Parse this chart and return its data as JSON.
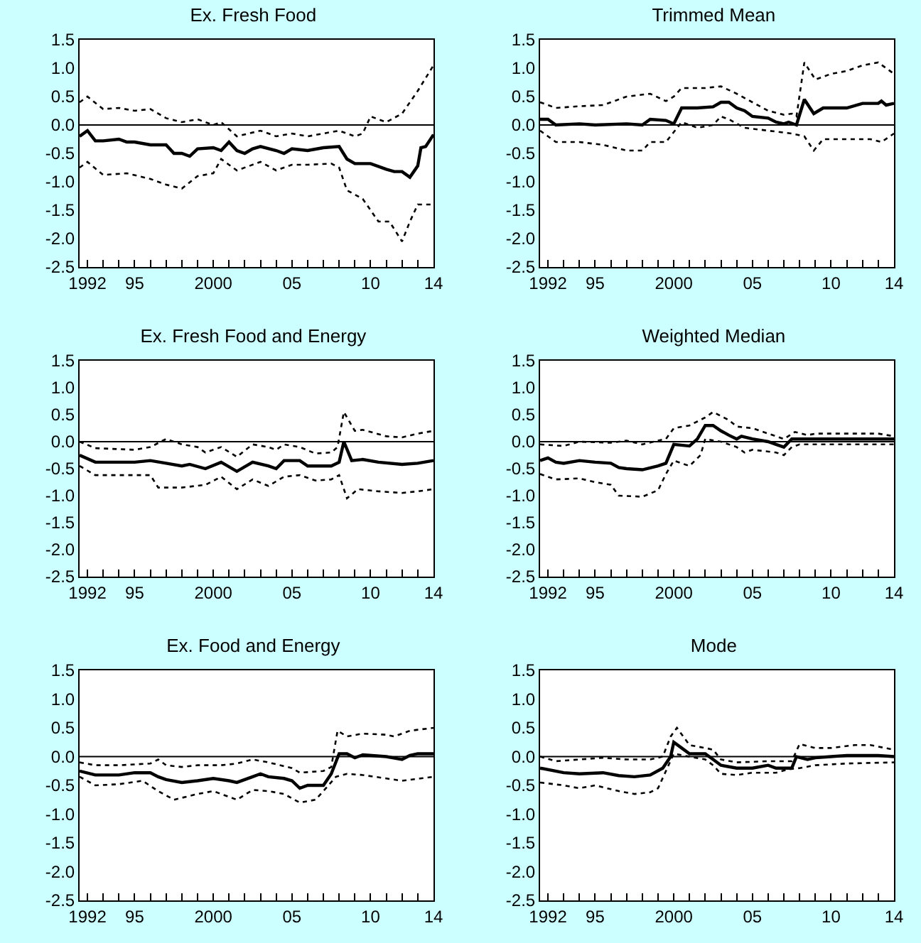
{
  "chart_data": [
    {
      "type": "line",
      "title": "Ex. Fresh Food",
      "xlim": [
        1991.5,
        2014
      ],
      "xticks": [
        {
          "value": 1992,
          "label": "1992"
        },
        {
          "value": 1993,
          "label": null
        },
        {
          "value": 1994,
          "label": null
        },
        {
          "value": 1995,
          "label": "95"
        },
        {
          "value": 1996,
          "label": null
        },
        {
          "value": 1997,
          "label": null
        },
        {
          "value": 1998,
          "label": null
        },
        {
          "value": 1999,
          "label": null
        },
        {
          "value": 2000,
          "label": "2000"
        },
        {
          "value": 2001,
          "label": null
        },
        {
          "value": 2002,
          "label": null
        },
        {
          "value": 2003,
          "label": null
        },
        {
          "value": 2004,
          "label": null
        },
        {
          "value": 2005,
          "label": "05"
        },
        {
          "value": 2006,
          "label": null
        },
        {
          "value": 2007,
          "label": null
        },
        {
          "value": 2008,
          "label": null
        },
        {
          "value": 2009,
          "label": null
        },
        {
          "value": 2010,
          "label": "10"
        },
        {
          "value": 2011,
          "label": null
        },
        {
          "value": 2012,
          "label": null
        },
        {
          "value": 2013,
          "label": null
        },
        {
          "value": 2014,
          "label": "14"
        }
      ],
      "ylim": [
        -2.5,
        1.5
      ],
      "yticks": [
        {
          "value": -2.5,
          "label": "-2.5"
        },
        {
          "value": -2,
          "label": "-2.0"
        },
        {
          "value": -1.5,
          "label": "-1.5"
        },
        {
          "value": -1,
          "label": "-1.0"
        },
        {
          "value": -0.5,
          "label": "-0.5"
        },
        {
          "value": 0,
          "label": "0.0"
        },
        {
          "value": 0.5,
          "label": "0.5"
        },
        {
          "value": 1,
          "label": "1.0"
        },
        {
          "value": 1.5,
          "label": "1.5"
        }
      ],
      "grid": false,
      "ref_lines": [
        {
          "axis": "y",
          "value": 0,
          "color": "#000000"
        }
      ],
      "series": [
        {
          "color": "#000000",
          "line_style": "solid",
          "x": [
            1991.5,
            1992,
            1992.5,
            1993,
            1994,
            1994.5,
            1995,
            1996,
            1997,
            1997.5,
            1998,
            1998.5,
            1999,
            2000,
            2000.5,
            2001,
            2001.5,
            2002,
            2002.5,
            2003,
            2004,
            2004.5,
            2005,
            2006,
            2007,
            2008,
            2008.5,
            2009,
            2010,
            2011,
            2011.5,
            2012,
            2012.5,
            2013,
            2013.2,
            2013.5,
            2014
          ],
          "values": [
            -0.2,
            -0.1,
            -0.28,
            -0.28,
            -0.25,
            -0.3,
            -0.3,
            -0.35,
            -0.35,
            -0.5,
            -0.5,
            -0.55,
            -0.42,
            -0.4,
            -0.45,
            -0.3,
            -0.45,
            -0.5,
            -0.42,
            -0.38,
            -0.45,
            -0.5,
            -0.42,
            -0.45,
            -0.4,
            -0.38,
            -0.6,
            -0.68,
            -0.68,
            -0.78,
            -0.82,
            -0.82,
            -0.92,
            -0.72,
            -0.4,
            -0.38,
            -0.17
          ]
        },
        {
          "color": "#000000",
          "line_style": "dotted",
          "x": [
            1991.5,
            1992,
            1993,
            1994,
            1995,
            1996,
            1997,
            1998,
            1999,
            2000,
            2000.5,
            2001.5,
            2003,
            2004,
            2005,
            2006,
            2007,
            2008,
            2009,
            2009.5,
            2010,
            2011,
            2012,
            2013,
            2014
          ],
          "values": [
            0.4,
            0.5,
            0.28,
            0.3,
            0.25,
            0.28,
            0.12,
            0.05,
            0.1,
            0,
            0.05,
            -0.2,
            -0.1,
            -0.2,
            -0.15,
            -0.2,
            -0.15,
            -0.1,
            -0.2,
            -0.15,
            0.15,
            0.05,
            0.2,
            0.6,
            1.05
          ]
        },
        {
          "color": "#000000",
          "line_style": "dotted",
          "x": [
            1991.5,
            1992,
            1993,
            1994.5,
            1996,
            1997,
            1998,
            1999,
            2000,
            2000.5,
            2001.5,
            2003,
            2004,
            2005,
            2006,
            2007.5,
            2008,
            2008.5,
            2009.5,
            2010.5,
            2011.2,
            2012,
            2012.5,
            2013,
            2014
          ],
          "values": [
            -0.75,
            -0.65,
            -0.88,
            -0.85,
            -0.95,
            -1.05,
            -1.12,
            -0.9,
            -0.85,
            -0.6,
            -0.8,
            -0.65,
            -0.8,
            -0.7,
            -0.7,
            -0.68,
            -0.75,
            -1.15,
            -1.3,
            -1.7,
            -1.7,
            -2.05,
            -1.7,
            -1.4,
            -1.4
          ]
        }
      ]
    },
    {
      "type": "line",
      "title": "Trimmed Mean",
      "xlim": [
        1991.5,
        2014
      ],
      "xticks": [
        {
          "value": 1992,
          "label": "1992"
        },
        {
          "value": 1993,
          "label": null
        },
        {
          "value": 1994,
          "label": null
        },
        {
          "value": 1995,
          "label": "95"
        },
        {
          "value": 1996,
          "label": null
        },
        {
          "value": 1997,
          "label": null
        },
        {
          "value": 1998,
          "label": null
        },
        {
          "value": 1999,
          "label": null
        },
        {
          "value": 2000,
          "label": "2000"
        },
        {
          "value": 2001,
          "label": null
        },
        {
          "value": 2002,
          "label": null
        },
        {
          "value": 2003,
          "label": null
        },
        {
          "value": 2004,
          "label": null
        },
        {
          "value": 2005,
          "label": "05"
        },
        {
          "value": 2006,
          "label": null
        },
        {
          "value": 2007,
          "label": null
        },
        {
          "value": 2008,
          "label": null
        },
        {
          "value": 2009,
          "label": null
        },
        {
          "value": 2010,
          "label": "10"
        },
        {
          "value": 2011,
          "label": null
        },
        {
          "value": 2012,
          "label": null
        },
        {
          "value": 2013,
          "label": null
        },
        {
          "value": 2014,
          "label": "14"
        }
      ],
      "ylim": [
        -2.5,
        1.5
      ],
      "yticks": [
        {
          "value": -2.5,
          "label": "-2.5"
        },
        {
          "value": -2,
          "label": "-2.0"
        },
        {
          "value": -1.5,
          "label": "-1.5"
        },
        {
          "value": -1,
          "label": "-1.0"
        },
        {
          "value": -0.5,
          "label": "-0.5"
        },
        {
          "value": 0,
          "label": "0.0"
        },
        {
          "value": 0.5,
          "label": "0.5"
        },
        {
          "value": 1,
          "label": "1.0"
        },
        {
          "value": 1.5,
          "label": "1.5"
        }
      ],
      "grid": false,
      "ref_lines": [
        {
          "axis": "y",
          "value": 0,
          "color": "#000000"
        }
      ],
      "series": [
        {
          "color": "#000000",
          "line_style": "solid",
          "x": [
            1991.5,
            1992,
            1992.5,
            1994,
            1995,
            1997,
            1998,
            1998.5,
            1999.5,
            2000,
            2000.5,
            2001.5,
            2002.5,
            2003,
            2003.5,
            2004,
            2004.5,
            2005,
            2006,
            2006.5,
            2007,
            2007.3,
            2007.8,
            2008.3,
            2008.9,
            2009.5,
            2011,
            2012,
            2013,
            2013.2,
            2013.5,
            2014
          ],
          "values": [
            0.1,
            0.1,
            0,
            0.02,
            0,
            0.02,
            0,
            0.1,
            0.08,
            0.02,
            0.3,
            0.3,
            0.32,
            0.4,
            0.4,
            0.3,
            0.25,
            0.15,
            0.12,
            0.05,
            0.02,
            0.05,
            0,
            0.45,
            0.2,
            0.3,
            0.3,
            0.38,
            0.38,
            0.42,
            0.35,
            0.38
          ]
        },
        {
          "color": "#000000",
          "line_style": "dotted",
          "x": [
            1991.5,
            1992.5,
            1994,
            1995.5,
            1997,
            1998.5,
            1999.5,
            2000,
            2000.5,
            2002,
            2003,
            2004,
            2005,
            2006,
            2007,
            2007.5,
            2007.8,
            2008.3,
            2009,
            2010,
            2011,
            2012,
            2013,
            2014
          ],
          "values": [
            0.4,
            0.3,
            0.33,
            0.35,
            0.5,
            0.55,
            0.42,
            0.5,
            0.65,
            0.65,
            0.68,
            0.55,
            0.4,
            0.25,
            0.18,
            0.2,
            0.15,
            1.1,
            0.8,
            0.9,
            0.95,
            1.05,
            1.1,
            0.9
          ]
        },
        {
          "color": "#000000",
          "line_style": "dotted",
          "x": [
            1991.5,
            1992.5,
            1994,
            1995.5,
            1997,
            1998,
            1998.5,
            1999.5,
            2000.5,
            2001.5,
            2002.5,
            2003,
            2003.5,
            2004.5,
            2006,
            2007.5,
            2008.3,
            2008.9,
            2009.5,
            2011,
            2012.5,
            2013.2,
            2014
          ],
          "values": [
            -0.1,
            -0.3,
            -0.3,
            -0.35,
            -0.45,
            -0.45,
            -0.3,
            -0.3,
            0.05,
            -0.05,
            0,
            0.15,
            0.1,
            -0.05,
            -0.1,
            -0.15,
            -0.2,
            -0.45,
            -0.25,
            -0.25,
            -0.25,
            -0.3,
            -0.15
          ]
        }
      ]
    },
    {
      "type": "line",
      "title": "Ex. Fresh Food and Energy",
      "xlim": [
        1991.5,
        2014
      ],
      "xticks": [
        {
          "value": 1992,
          "label": "1992"
        },
        {
          "value": 1993,
          "label": null
        },
        {
          "value": 1994,
          "label": null
        },
        {
          "value": 1995,
          "label": "95"
        },
        {
          "value": 1996,
          "label": null
        },
        {
          "value": 1997,
          "label": null
        },
        {
          "value": 1998,
          "label": null
        },
        {
          "value": 1999,
          "label": null
        },
        {
          "value": 2000,
          "label": "2000"
        },
        {
          "value": 2001,
          "label": null
        },
        {
          "value": 2002,
          "label": null
        },
        {
          "value": 2003,
          "label": null
        },
        {
          "value": 2004,
          "label": null
        },
        {
          "value": 2005,
          "label": "05"
        },
        {
          "value": 2006,
          "label": null
        },
        {
          "value": 2007,
          "label": null
        },
        {
          "value": 2008,
          "label": null
        },
        {
          "value": 2009,
          "label": null
        },
        {
          "value": 2010,
          "label": "10"
        },
        {
          "value": 2011,
          "label": null
        },
        {
          "value": 2012,
          "label": null
        },
        {
          "value": 2013,
          "label": null
        },
        {
          "value": 2014,
          "label": "14"
        }
      ],
      "ylim": [
        -2.5,
        1.5
      ],
      "yticks": [
        {
          "value": -2.5,
          "label": "-2.5"
        },
        {
          "value": -2,
          "label": "-2.0"
        },
        {
          "value": -1.5,
          "label": "-1.5"
        },
        {
          "value": -1,
          "label": "-1.0"
        },
        {
          "value": -0.5,
          "label": "-0.5"
        },
        {
          "value": 0,
          "label": "0.0"
        },
        {
          "value": 0.5,
          "label": "0.5"
        },
        {
          "value": 1,
          "label": "1.0"
        },
        {
          "value": 1.5,
          "label": "1.5"
        }
      ],
      "grid": false,
      "ref_lines": [
        {
          "axis": "y",
          "value": 0,
          "color": "#000000"
        }
      ],
      "series": [
        {
          "color": "#000000",
          "line_style": "solid",
          "x": [
            1991.5,
            1992.5,
            1994,
            1995,
            1996,
            1997,
            1998,
            1998.5,
            1999.5,
            2000.5,
            2001.5,
            2002.5,
            2003.5,
            2004,
            2004.5,
            2005.5,
            2006,
            2007.5,
            2008,
            2008.3,
            2008.8,
            2009.5,
            2010.5,
            2012,
            2013,
            2014
          ],
          "values": [
            -0.25,
            -0.38,
            -0.38,
            -0.38,
            -0.35,
            -0.4,
            -0.45,
            -0.42,
            -0.5,
            -0.38,
            -0.55,
            -0.38,
            -0.45,
            -0.5,
            -0.35,
            -0.35,
            -0.45,
            -0.45,
            -0.38,
            0,
            -0.35,
            -0.33,
            -0.38,
            -0.42,
            -0.4,
            -0.35
          ]
        },
        {
          "color": "#000000",
          "line_style": "dotted",
          "x": [
            1991.5,
            1992.5,
            1995,
            1996,
            1997,
            1998,
            1999,
            1999.5,
            2000.5,
            2001.5,
            2002.5,
            2003.5,
            2004,
            2004.5,
            2005.5,
            2006.5,
            2007.5,
            2007.9,
            2008.3,
            2009,
            2009.5,
            2011,
            2012,
            2013,
            2014
          ],
          "values": [
            0,
            -0.12,
            -0.15,
            -0.1,
            0.05,
            -0.05,
            -0.1,
            -0.2,
            -0.1,
            -0.28,
            -0.05,
            -0.1,
            -0.15,
            -0.05,
            -0.1,
            -0.22,
            -0.2,
            -0.1,
            0.55,
            0.2,
            0.22,
            0.1,
            0.08,
            0.15,
            0.2
          ]
        },
        {
          "color": "#000000",
          "line_style": "dotted",
          "x": [
            1991.5,
            1992.5,
            1994,
            1996,
            1996.5,
            1998,
            1999.5,
            2000.5,
            2001.5,
            2002.5,
            2003.5,
            2004.5,
            2005.5,
            2006.5,
            2007.5,
            2008,
            2008.5,
            2009.2,
            2010.5,
            2012,
            2013,
            2014
          ],
          "values": [
            -0.45,
            -0.62,
            -0.62,
            -0.62,
            -0.85,
            -0.85,
            -0.8,
            -0.65,
            -0.88,
            -0.7,
            -0.82,
            -0.65,
            -0.62,
            -0.72,
            -0.7,
            -0.62,
            -1.05,
            -0.88,
            -0.92,
            -0.95,
            -0.92,
            -0.88
          ]
        }
      ]
    },
    {
      "type": "line",
      "title": "Weighted Median",
      "xlim": [
        1991.5,
        2014
      ],
      "xticks": [
        {
          "value": 1992,
          "label": "1992"
        },
        {
          "value": 1993,
          "label": null
        },
        {
          "value": 1994,
          "label": null
        },
        {
          "value": 1995,
          "label": "95"
        },
        {
          "value": 1996,
          "label": null
        },
        {
          "value": 1997,
          "label": null
        },
        {
          "value": 1998,
          "label": null
        },
        {
          "value": 1999,
          "label": null
        },
        {
          "value": 2000,
          "label": "2000"
        },
        {
          "value": 2001,
          "label": null
        },
        {
          "value": 2002,
          "label": null
        },
        {
          "value": 2003,
          "label": null
        },
        {
          "value": 2004,
          "label": null
        },
        {
          "value": 2005,
          "label": "05"
        },
        {
          "value": 2006,
          "label": null
        },
        {
          "value": 2007,
          "label": null
        },
        {
          "value": 2008,
          "label": null
        },
        {
          "value": 2009,
          "label": null
        },
        {
          "value": 2010,
          "label": "10"
        },
        {
          "value": 2011,
          "label": null
        },
        {
          "value": 2012,
          "label": null
        },
        {
          "value": 2013,
          "label": null
        },
        {
          "value": 2014,
          "label": "14"
        }
      ],
      "ylim": [
        -2.5,
        1.5
      ],
      "yticks": [
        {
          "value": -2.5,
          "label": "-2.5"
        },
        {
          "value": -2,
          "label": "-2.0"
        },
        {
          "value": -1.5,
          "label": "-1.5"
        },
        {
          "value": -1,
          "label": "-1.0"
        },
        {
          "value": -0.5,
          "label": "-0.5"
        },
        {
          "value": 0,
          "label": "0.0"
        },
        {
          "value": 0.5,
          "label": "0.5"
        },
        {
          "value": 1,
          "label": "1.0"
        },
        {
          "value": 1.5,
          "label": "1.5"
        }
      ],
      "grid": false,
      "ref_lines": [
        {
          "axis": "y",
          "value": 0,
          "color": "#000000"
        }
      ],
      "series": [
        {
          "color": "#000000",
          "line_style": "solid",
          "x": [
            1991.5,
            1992,
            1992.5,
            1993,
            1994,
            1995,
            1996,
            1996.5,
            1997,
            1998,
            1999,
            1999.5,
            2000,
            2001,
            2001.5,
            2002,
            2002.5,
            2003,
            2003.5,
            2004,
            2004.3,
            2005,
            2006,
            2006.5,
            2007,
            2007.5,
            2008,
            2010,
            2013,
            2014
          ],
          "values": [
            -0.35,
            -0.3,
            -0.38,
            -0.4,
            -0.35,
            -0.38,
            -0.4,
            -0.48,
            -0.5,
            -0.52,
            -0.45,
            -0.4,
            -0.05,
            -0.08,
            0.05,
            0.3,
            0.3,
            0.2,
            0.12,
            0.05,
            0.1,
            0.05,
            0,
            -0.05,
            -0.1,
            0.05,
            0.05,
            0.05,
            0.05,
            0.05
          ]
        },
        {
          "color": "#000000",
          "line_style": "dotted",
          "x": [
            1991.5,
            1993,
            1994,
            1996,
            1997,
            1998,
            1999,
            1999.5,
            2000,
            2001,
            2002,
            2002.5,
            2003.5,
            2004,
            2005,
            2006.5,
            2007,
            2007.7,
            2008.5,
            2009,
            2013,
            2014
          ],
          "values": [
            -0.05,
            -0.08,
            0,
            -0.02,
            0.02,
            -0.05,
            0.02,
            0.05,
            0.25,
            0.3,
            0.45,
            0.55,
            0.4,
            0.28,
            0.25,
            0.1,
            0.05,
            0.18,
            0.12,
            0.15,
            0.15,
            0.1
          ]
        },
        {
          "color": "#000000",
          "line_style": "dotted",
          "x": [
            1991.5,
            1992.5,
            1994,
            1995,
            1996,
            1996.5,
            1998,
            1999,
            1999.5,
            2000,
            2001,
            2001.7,
            2002,
            2003,
            2004,
            2004.5,
            2005,
            2006.5,
            2007,
            2007.5,
            2008,
            2013,
            2014
          ],
          "values": [
            -0.6,
            -0.7,
            -0.68,
            -0.75,
            -0.8,
            -1,
            -1.02,
            -0.9,
            -0.6,
            -0.35,
            -0.45,
            -0.25,
            0.05,
            0,
            -0.1,
            -0.2,
            -0.15,
            -0.2,
            -0.25,
            -0.1,
            -0.05,
            -0.05,
            -0.05
          ]
        }
      ]
    },
    {
      "type": "line",
      "title": "Ex. Food and Energy",
      "xlim": [
        1991.5,
        2014
      ],
      "xticks": [
        {
          "value": 1992,
          "label": "1992"
        },
        {
          "value": 1993,
          "label": null
        },
        {
          "value": 1994,
          "label": null
        },
        {
          "value": 1995,
          "label": "95"
        },
        {
          "value": 1996,
          "label": null
        },
        {
          "value": 1997,
          "label": null
        },
        {
          "value": 1998,
          "label": null
        },
        {
          "value": 1999,
          "label": null
        },
        {
          "value": 2000,
          "label": "2000"
        },
        {
          "value": 2001,
          "label": null
        },
        {
          "value": 2002,
          "label": null
        },
        {
          "value": 2003,
          "label": null
        },
        {
          "value": 2004,
          "label": null
        },
        {
          "value": 2005,
          "label": "05"
        },
        {
          "value": 2006,
          "label": null
        },
        {
          "value": 2007,
          "label": null
        },
        {
          "value": 2008,
          "label": null
        },
        {
          "value": 2009,
          "label": null
        },
        {
          "value": 2010,
          "label": "10"
        },
        {
          "value": 2011,
          "label": null
        },
        {
          "value": 2012,
          "label": null
        },
        {
          "value": 2013,
          "label": null
        },
        {
          "value": 2014,
          "label": "14"
        }
      ],
      "ylim": [
        -2.5,
        1.5
      ],
      "yticks": [
        {
          "value": -2.5,
          "label": "-2.5"
        },
        {
          "value": -2,
          "label": "-2.0"
        },
        {
          "value": -1.5,
          "label": "-1.5"
        },
        {
          "value": -1,
          "label": "-1.0"
        },
        {
          "value": -0.5,
          "label": "-0.5"
        },
        {
          "value": 0,
          "label": "0.0"
        },
        {
          "value": 0.5,
          "label": "0.5"
        },
        {
          "value": 1,
          "label": "1.0"
        },
        {
          "value": 1.5,
          "label": "1.5"
        }
      ],
      "grid": false,
      "ref_lines": [
        {
          "axis": "y",
          "value": 0,
          "color": "#000000"
        }
      ],
      "series": [
        {
          "color": "#000000",
          "line_style": "solid",
          "x": [
            1991.5,
            1992.5,
            1994,
            1995,
            1996,
            1996.5,
            1997,
            1998,
            1999,
            2000,
            2001,
            2001.5,
            2002.5,
            2003,
            2003.5,
            2004.5,
            2005,
            2005.5,
            2006,
            2007,
            2007.5,
            2008,
            2008.5,
            2009,
            2009.5,
            2011,
            2012,
            2012.5,
            2013,
            2014
          ],
          "values": [
            -0.25,
            -0.32,
            -0.32,
            -0.28,
            -0.28,
            -0.35,
            -0.4,
            -0.45,
            -0.42,
            -0.38,
            -0.42,
            -0.45,
            -0.35,
            -0.3,
            -0.35,
            -0.38,
            -0.42,
            -0.55,
            -0.5,
            -0.5,
            -0.3,
            0.05,
            0.05,
            -0.02,
            0.03,
            0,
            -0.05,
            0.02,
            0.05,
            0.05
          ]
        },
        {
          "color": "#000000",
          "line_style": "dotted",
          "x": [
            1991.5,
            1992.5,
            1994,
            1996,
            1996.5,
            1997,
            1998,
            1999,
            2000.5,
            2001.5,
            2002.5,
            2003.5,
            2005,
            2005.5,
            2007,
            2007.5,
            2007.9,
            2008.5,
            2009.5,
            2011,
            2011.5,
            2012.5,
            2014
          ],
          "values": [
            -0.1,
            -0.15,
            -0.15,
            -0.12,
            -0.05,
            -0.15,
            -0.18,
            -0.15,
            -0.15,
            -0.12,
            -0.05,
            -0.1,
            -0.2,
            -0.28,
            -0.25,
            -0.18,
            0.45,
            0.35,
            0.4,
            0.38,
            0.35,
            0.45,
            0.5
          ]
        },
        {
          "color": "#000000",
          "line_style": "dotted",
          "x": [
            1991.5,
            1992.5,
            1994,
            1995.5,
            1996.5,
            1997.5,
            1999,
            2000,
            2001.5,
            2002.5,
            2003.5,
            2004.5,
            2005.5,
            2006.5,
            2007,
            2007.8,
            2008.5,
            2009.5,
            2011,
            2012,
            2014
          ],
          "values": [
            -0.35,
            -0.5,
            -0.48,
            -0.42,
            -0.6,
            -0.75,
            -0.65,
            -0.6,
            -0.75,
            -0.58,
            -0.6,
            -0.65,
            -0.8,
            -0.75,
            -0.6,
            -0.35,
            -0.3,
            -0.32,
            -0.38,
            -0.42,
            -0.35
          ]
        }
      ]
    },
    {
      "type": "line",
      "title": "Mode",
      "xlim": [
        1991.5,
        2014
      ],
      "xticks": [
        {
          "value": 1992,
          "label": "1992"
        },
        {
          "value": 1993,
          "label": null
        },
        {
          "value": 1994,
          "label": null
        },
        {
          "value": 1995,
          "label": "95"
        },
        {
          "value": 1996,
          "label": null
        },
        {
          "value": 1997,
          "label": null
        },
        {
          "value": 1998,
          "label": null
        },
        {
          "value": 1999,
          "label": null
        },
        {
          "value": 2000,
          "label": "2000"
        },
        {
          "value": 2001,
          "label": null
        },
        {
          "value": 2002,
          "label": null
        },
        {
          "value": 2003,
          "label": null
        },
        {
          "value": 2004,
          "label": null
        },
        {
          "value": 2005,
          "label": "05"
        },
        {
          "value": 2006,
          "label": null
        },
        {
          "value": 2007,
          "label": null
        },
        {
          "value": 2008,
          "label": null
        },
        {
          "value": 2009,
          "label": null
        },
        {
          "value": 2010,
          "label": "10"
        },
        {
          "value": 2011,
          "label": null
        },
        {
          "value": 2012,
          "label": null
        },
        {
          "value": 2013,
          "label": null
        },
        {
          "value": 2014,
          "label": "14"
        }
      ],
      "ylim": [
        -2.5,
        1.5
      ],
      "yticks": [
        {
          "value": -2.5,
          "label": "-2.5"
        },
        {
          "value": -2,
          "label": "-2.0"
        },
        {
          "value": -1.5,
          "label": "-1.5"
        },
        {
          "value": -1,
          "label": "-1.0"
        },
        {
          "value": -0.5,
          "label": "-0.5"
        },
        {
          "value": 0,
          "label": "0.0"
        },
        {
          "value": 0.5,
          "label": "0.5"
        },
        {
          "value": 1,
          "label": "1.0"
        },
        {
          "value": 1.5,
          "label": "1.5"
        }
      ],
      "grid": false,
      "ref_lines": [
        {
          "axis": "y",
          "value": 0,
          "color": "#000000"
        }
      ],
      "series": [
        {
          "color": "#000000",
          "line_style": "solid",
          "x": [
            1991.5,
            1993,
            1994,
            1995.5,
            1996.5,
            1997.5,
            1998.5,
            1999.3,
            1999.8,
            2000,
            2000.5,
            2001,
            2002,
            2002.5,
            2003,
            2004,
            2005,
            2006,
            2006.5,
            2007.5,
            2007.8,
            2008.5,
            2009,
            2010,
            2011,
            2013,
            2014
          ],
          "values": [
            -0.2,
            -0.28,
            -0.3,
            -0.28,
            -0.33,
            -0.35,
            -0.32,
            -0.2,
            0,
            0.25,
            0.15,
            0.05,
            0.05,
            -0.05,
            -0.15,
            -0.2,
            -0.2,
            -0.15,
            -0.2,
            -0.2,
            0,
            -0.05,
            -0.02,
            0,
            0.02,
            0.02,
            0
          ]
        },
        {
          "color": "#000000",
          "line_style": "dotted",
          "x": [
            1991.5,
            1992.5,
            1994,
            1995.5,
            1997,
            1998.5,
            1999.3,
            1999.8,
            2000.2,
            2001,
            2002,
            2002.5,
            2003,
            2004,
            2006,
            2007.5,
            2008,
            2009,
            2010,
            2011.5,
            2012.5,
            2014
          ],
          "values": [
            0,
            -0.08,
            -0.05,
            -0.02,
            -0.05,
            -0.05,
            0,
            0.35,
            0.5,
            0.2,
            0.15,
            0.12,
            -0.05,
            -0.1,
            -0.08,
            -0.08,
            0.22,
            0.15,
            0.15,
            0.2,
            0.2,
            0.12
          ]
        },
        {
          "color": "#000000",
          "line_style": "dotted",
          "x": [
            1991.5,
            1993,
            1994,
            1995,
            1996.5,
            1997.5,
            1998.5,
            1999,
            2000,
            2001,
            2002,
            2002.5,
            2003,
            2004,
            2005,
            2006.5,
            2007.3,
            2008,
            2009,
            2011,
            2014
          ],
          "values": [
            -0.45,
            -0.5,
            -0.55,
            -0.5,
            -0.6,
            -0.65,
            -0.62,
            -0.55,
            0.05,
            0,
            -0.05,
            -0.15,
            -0.3,
            -0.32,
            -0.28,
            -0.28,
            -0.22,
            -0.2,
            -0.15,
            -0.12,
            -0.1
          ]
        }
      ]
    }
  ]
}
